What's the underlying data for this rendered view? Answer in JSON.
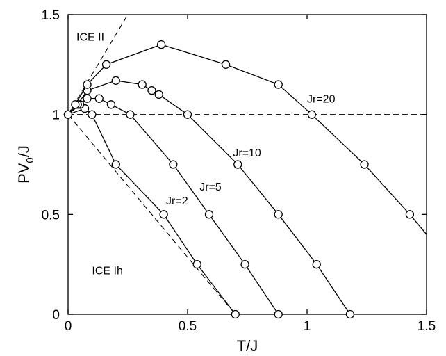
{
  "chart_data": {
    "type": "line",
    "xlabel": "T/J",
    "ylabel_main": "PV",
    "ylabel_sub": "0",
    "ylabel_tail": "/J",
    "xlim": [
      0,
      1.5
    ],
    "ylim": [
      0,
      1.5
    ],
    "x_ticks": [
      {
        "value": 0,
        "label": "0"
      },
      {
        "value": 0.5,
        "label": "0.5"
      },
      {
        "value": 1,
        "label": "1"
      },
      {
        "value": 1.5,
        "label": "1.5"
      }
    ],
    "y_ticks": [
      {
        "value": 0,
        "label": "0"
      },
      {
        "value": 0.5,
        "label": "0.5"
      },
      {
        "value": 1,
        "label": "1"
      },
      {
        "value": 1.5,
        "label": "1.5"
      }
    ],
    "series": [
      {
        "name": "Jr=2",
        "label_at": [
          0.41,
          0.55
        ],
        "x": [
          0,
          0.07,
          0.1,
          0.2,
          0.4,
          0.54,
          0.7
        ],
        "y": [
          1,
          1.03,
          1.0,
          0.75,
          0.5,
          0.25,
          0
        ]
      },
      {
        "name": "Jr=5",
        "label_at": [
          0.55,
          0.62
        ],
        "x": [
          0,
          0.05,
          0.08,
          0.13,
          0.18,
          0.26,
          0.44,
          0.59,
          0.74,
          0.88
        ],
        "y": [
          1,
          1.05,
          1.08,
          1.08,
          1.05,
          1.0,
          0.75,
          0.5,
          0.25,
          0
        ]
      },
      {
        "name": "Jr=10",
        "label_at": [
          0.69,
          0.79
        ],
        "x": [
          0,
          0.04,
          0.08,
          0.2,
          0.31,
          0.35,
          0.38,
          0.5,
          0.71,
          0.88,
          1.04,
          1.18
        ],
        "y": [
          1,
          1.05,
          1.12,
          1.17,
          1.15,
          1.12,
          1.1,
          1.0,
          0.75,
          0.5,
          0.25,
          0
        ]
      },
      {
        "name": "Jr=20",
        "label_at": [
          1.0,
          1.06
        ],
        "x": [
          0,
          0.03,
          0.08,
          0.16,
          0.39,
          0.66,
          0.88,
          1.02,
          1.24,
          1.43,
          1.5
        ],
        "y": [
          1,
          1.05,
          1.15,
          1.25,
          1.35,
          1.25,
          1.15,
          1.0,
          0.75,
          0.5,
          0.4
        ]
      }
    ],
    "reference_lines": [
      {
        "name": "horizontal-dashed",
        "x": [
          0,
          1.5
        ],
        "y": [
          1,
          1
        ]
      },
      {
        "name": "ice-ii-boundary",
        "x": [
          0,
          0.25
        ],
        "y": [
          1,
          1.5
        ]
      },
      {
        "name": "ice-ih-boundary",
        "x": [
          0,
          0.7
        ],
        "y": [
          1,
          0
        ]
      }
    ],
    "annotations": [
      {
        "text": "ICE II",
        "at": [
          0.035,
          1.37
        ]
      },
      {
        "text": "ICE Ih",
        "at": [
          0.1,
          0.2
        ]
      }
    ],
    "grid": false,
    "legend": "none"
  }
}
